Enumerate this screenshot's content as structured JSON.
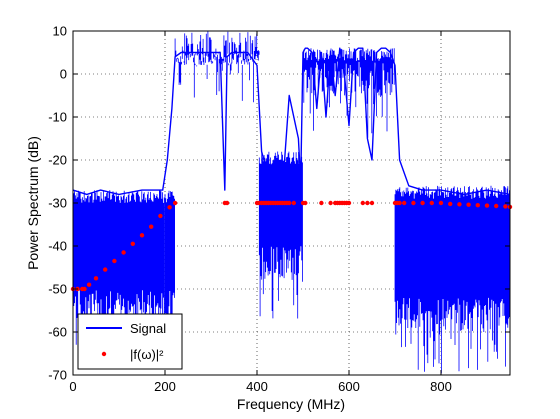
{
  "chart_data": {
    "type": "line",
    "title": "",
    "xlabel": "Frequency (MHz)",
    "ylabel": "Power Spectrum (dB)",
    "xlim": [
      0,
      950
    ],
    "ylim": [
      -70,
      10
    ],
    "xticks": [
      0,
      200,
      400,
      600,
      800
    ],
    "yticks": [
      10,
      0,
      -10,
      -20,
      -30,
      -40,
      -50,
      -60,
      -70
    ],
    "grid": true,
    "legend_position": "bottom-left",
    "series": [
      {
        "name": "Signal",
        "color": "#0000ff",
        "style": "line",
        "band_segments": [
          {
            "x0": 0,
            "x1": 200,
            "upper": -27,
            "lower": -58
          },
          {
            "x0": 200,
            "x1": 222,
            "upper": -27,
            "lower": -58
          },
          {
            "x0": 222,
            "x1": 405,
            "upper": 5,
            "lower": 2
          },
          {
            "x0": 405,
            "x1": 500,
            "upper": -18,
            "lower": -48
          },
          {
            "x0": 500,
            "x1": 700,
            "upper": 6,
            "lower": -5
          },
          {
            "x0": 700,
            "x1": 950,
            "upper": -26,
            "lower": -60
          }
        ],
        "x": [
          0,
          30,
          60,
          100,
          150,
          195,
          205,
          215,
          222,
          235,
          260,
          300,
          320,
          330,
          335,
          345,
          380,
          400,
          410,
          420,
          440,
          460,
          470,
          480,
          490,
          495,
          500,
          505,
          510,
          520,
          530,
          540,
          550,
          560,
          570,
          580,
          590,
          600,
          610,
          620,
          630,
          640,
          650,
          660,
          670,
          680,
          690,
          700,
          710,
          730,
          760,
          800,
          850,
          900,
          950
        ],
        "y": [
          -27,
          -28,
          -27,
          -28,
          -27,
          -27,
          -20,
          -8,
          4,
          5,
          5,
          5,
          5,
          -27,
          4,
          5,
          5,
          2,
          -18,
          -22,
          -26,
          -20,
          -5,
          -10,
          -15,
          -25,
          5,
          6,
          6,
          5,
          -8,
          5,
          -10,
          5,
          -5,
          6,
          0,
          -12,
          5,
          6,
          6,
          -15,
          -20,
          5,
          6,
          6,
          5,
          2,
          -20,
          -26,
          -27,
          -27,
          -28,
          -27,
          -28
        ]
      },
      {
        "name": "|f(ω)|²",
        "color": "#ff0000",
        "style": "markers",
        "x": [
          0,
          10,
          20,
          25,
          35,
          50,
          70,
          90,
          110,
          130,
          150,
          170,
          190,
          210,
          222,
          330,
          335,
          400,
          405,
          410,
          415,
          420,
          425,
          430,
          435,
          440,
          445,
          450,
          455,
          460,
          465,
          470,
          480,
          500,
          505,
          540,
          560,
          570,
          575,
          580,
          585,
          590,
          595,
          600,
          630,
          640,
          650,
          700,
          705,
          710,
          720,
          740,
          760,
          780,
          800,
          820,
          840,
          860,
          880,
          900,
          920,
          940,
          950
        ],
        "y": [
          -50,
          -50,
          -50,
          -50,
          -49,
          -47.5,
          -45.5,
          -43.5,
          -41.5,
          -39.5,
          -37.5,
          -35.5,
          -33,
          -31,
          -30,
          -30,
          -30,
          -30,
          -30,
          -30,
          -30,
          -30,
          -30,
          -30,
          -30,
          -30,
          -30,
          -30,
          -30,
          -30,
          -30,
          -30,
          -30,
          -30,
          -30,
          -30,
          -30,
          -30,
          -30,
          -30,
          -30,
          -30,
          -30,
          -30,
          -30,
          -30,
          -30,
          -30,
          -30,
          -30,
          -30,
          -30,
          -30,
          -30,
          -30,
          -30.2,
          -30.3,
          -30.4,
          -30.5,
          -30.6,
          -30.7,
          -30.8,
          -30.9
        ]
      }
    ]
  }
}
